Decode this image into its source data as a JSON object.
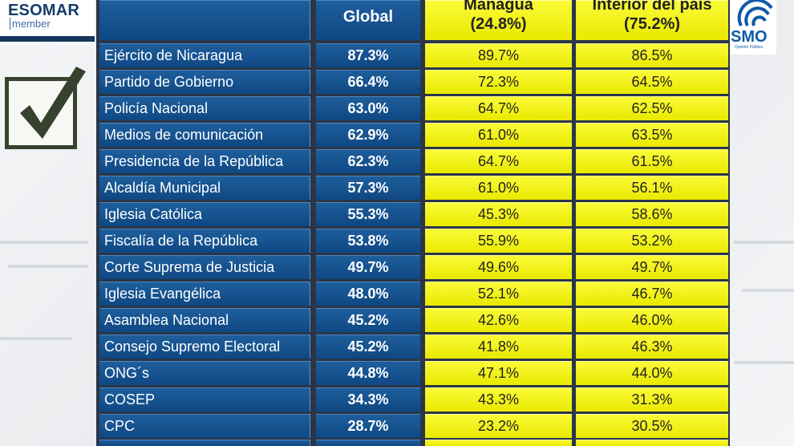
{
  "logos": {
    "esomar_brand": "ESOMAR",
    "esomar_member": "member",
    "right_logo_text": "SMO",
    "right_logo_subtext": "Opinión Pública"
  },
  "icons": {
    "checkbox": "checkmark-box-icon"
  },
  "colors": {
    "blue_cell": "#15528f",
    "yellow_cell": "#f2f21a",
    "grid": "#2a3648"
  },
  "table": {
    "headers": {
      "global": "Global",
      "managua": "Managua",
      "managua_pct": "(24.8%)",
      "interior": "Interior del país",
      "interior_pct": "(75.2%)"
    },
    "rows": [
      {
        "name": "Ejército de Nicaragua",
        "global": "87.3%",
        "managua": "89.7%",
        "interior": "86.5%"
      },
      {
        "name": "Partido de Gobierno",
        "global": "66.4%",
        "managua": "72.3%",
        "interior": "64.5%"
      },
      {
        "name": "Policía Nacional",
        "global": "63.0%",
        "managua": "64.7%",
        "interior": "62.5%"
      },
      {
        "name": "Medios de comunicación",
        "global": "62.9%",
        "managua": "61.0%",
        "interior": "63.5%"
      },
      {
        "name": "Presidencia de la República",
        "global": "62.3%",
        "managua": "64.7%",
        "interior": "61.5%"
      },
      {
        "name": "Alcaldía Municipal",
        "global": "57.3%",
        "managua": "61.0%",
        "interior": "56.1%"
      },
      {
        "name": "Iglesia Católica",
        "global": "55.3%",
        "managua": "45.3%",
        "interior": "58.6%"
      },
      {
        "name": "Fiscalía de la República",
        "global": "53.8%",
        "managua": "55.9%",
        "interior": "53.2%"
      },
      {
        "name": "Corte Suprema de Justicia",
        "global": "49.7%",
        "managua": "49.6%",
        "interior": "49.7%"
      },
      {
        "name": "Iglesia Evangélica",
        "global": "48.0%",
        "managua": "52.1%",
        "interior": "46.7%"
      },
      {
        "name": "Asamblea Nacional",
        "global": "45.2%",
        "managua": "42.6%",
        "interior": "46.0%"
      },
      {
        "name": "Consejo Supremo Electoral",
        "global": "45.2%",
        "managua": "41.8%",
        "interior": "46.3%"
      },
      {
        "name": "ONG´s",
        "global": "44.8%",
        "managua": "47.1%",
        "interior": "44.0%"
      },
      {
        "name": "COSEP",
        "global": "34.3%",
        "managua": "43.3%",
        "interior": "31.3%"
      },
      {
        "name": "CPC",
        "global": "28.7%",
        "managua": "23.2%",
        "interior": "30.5%"
      }
    ]
  }
}
